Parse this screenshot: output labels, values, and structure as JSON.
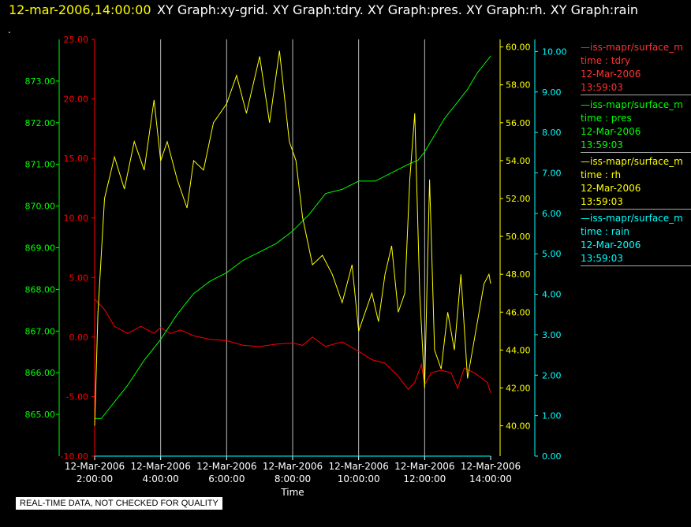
{
  "header": {
    "datetime": "12-mar-2006,14:00:00",
    "titles": "XY Graph:xy-grid.  XY Graph:tdry.  XY Graph:pres.  XY Graph:rh.  XY Graph:rain"
  },
  "marker_text": ".",
  "footer_note": "REAL-TIME DATA, NOT CHECKED FOR QUALITY",
  "colors": {
    "background": "#000000",
    "grid": "#bbbbbb",
    "tdry": "#ff0000",
    "pres": "#00ff00",
    "rh": "#ffff00",
    "rain": "#00ffff"
  },
  "legend": [
    {
      "line": "—iss-mapr/surface_m",
      "field": "time : tdry",
      "date": "12-Mar-2006",
      "time": "13:59:03",
      "color": "#ff3030"
    },
    {
      "line": "—iss-mapr/surface_m",
      "field": "time : pres",
      "date": "12-Mar-2006",
      "time": "13:59:03",
      "color": "#00ff00"
    },
    {
      "line": "—iss-mapr/surface_m",
      "field": "time : rh",
      "date": "12-Mar-2006",
      "time": "13:59:03",
      "color": "#ffff00"
    },
    {
      "line": "—iss-mapr/surface_m",
      "field": "time : rain",
      "date": "12-Mar-2006",
      "time": "13:59:03",
      "color": "#00ffff"
    }
  ],
  "chart_data": {
    "type": "line",
    "xlabel": "Time",
    "x_ticks": [
      {
        "date": "12-Mar-2006",
        "time": "2:00:00",
        "hour": 2
      },
      {
        "date": "12-Mar-2006",
        "time": "4:00:00",
        "hour": 4
      },
      {
        "date": "12-Mar-2006",
        "time": "6:00:00",
        "hour": 6
      },
      {
        "date": "12-Mar-2006",
        "time": "8:00:00",
        "hour": 8
      },
      {
        "date": "12-Mar-2006",
        "time": "10:00:00",
        "hour": 10
      },
      {
        "date": "12-Mar-2006",
        "time": "12:00:00",
        "hour": 12
      },
      {
        "date": "12-Mar-2006",
        "time": "14:00:00",
        "hour": 14
      }
    ],
    "xlim": [
      2,
      14
    ],
    "grid": true,
    "axes": {
      "tdry": {
        "ylim": [
          -10,
          25
        ],
        "ticks": [
          "-10.00",
          "-5.00",
          "0.00",
          "5.00",
          "10.00",
          "15.00",
          "20.00",
          "25.00"
        ],
        "color": "#ff0000"
      },
      "pres": {
        "ylim": [
          864,
          874
        ],
        "ticks": [
          "865.00",
          "866.00",
          "867.00",
          "868.00",
          "869.00",
          "870.00",
          "871.00",
          "872.00",
          "873.00"
        ],
        "color": "#00ff00"
      },
      "rh": {
        "ylim": [
          38.4,
          60.4
        ],
        "ticks": [
          "40.00",
          "42.00",
          "44.00",
          "46.00",
          "48.00",
          "50.00",
          "52.00",
          "54.00",
          "56.00",
          "58.00",
          "60.00"
        ],
        "color": "#ffff00"
      },
      "rain": {
        "ylim": [
          0,
          10.3
        ],
        "ticks": [
          "0.00",
          "1.00",
          "2.00",
          "3.00",
          "4.00",
          "5.00",
          "6.00",
          "7.00",
          "8.00",
          "9.00",
          "10.00"
        ],
        "color": "#00ffff"
      }
    },
    "series": [
      {
        "key": "tdry",
        "x": [
          2.0,
          2.3,
          2.6,
          3.0,
          3.4,
          3.8,
          4.0,
          4.3,
          4.6,
          5.0,
          5.5,
          6.0,
          6.5,
          7.0,
          7.5,
          8.0,
          8.3,
          8.6,
          9.0,
          9.5,
          10.0,
          10.4,
          10.8,
          11.2,
          11.5,
          11.7,
          11.9,
          12.0,
          12.2,
          12.5,
          12.8,
          13.0,
          13.2,
          13.5,
          13.7,
          13.9,
          14.0
        ],
        "values": [
          3.2,
          2.3,
          0.9,
          0.3,
          0.9,
          0.3,
          0.8,
          0.3,
          0.6,
          0.1,
          -0.2,
          -0.3,
          -0.7,
          -0.8,
          -0.6,
          -0.5,
          -0.7,
          0.0,
          -0.8,
          -0.4,
          -1.2,
          -1.9,
          -2.2,
          -3.3,
          -4.4,
          -3.8,
          -2.3,
          -4.0,
          -3.0,
          -2.8,
          -3.0,
          -4.3,
          -2.6,
          -3.0,
          -3.4,
          -3.8,
          -4.7
        ]
      },
      {
        "key": "pres",
        "x": [
          2.0,
          2.2,
          2.5,
          3.0,
          3.5,
          4.0,
          4.5,
          5.0,
          5.5,
          6.0,
          6.5,
          7.0,
          7.5,
          8.0,
          8.5,
          9.0,
          9.5,
          10.0,
          10.5,
          11.0,
          11.5,
          11.8,
          12.0,
          12.3,
          12.6,
          13.0,
          13.3,
          13.6,
          13.9,
          14.0
        ],
        "values": [
          864.9,
          864.9,
          865.2,
          865.7,
          866.3,
          866.8,
          867.4,
          867.9,
          868.2,
          868.4,
          868.7,
          868.9,
          869.1,
          869.4,
          869.8,
          870.3,
          870.4,
          870.6,
          870.6,
          870.8,
          871.0,
          871.1,
          871.3,
          871.7,
          872.1,
          872.5,
          872.8,
          873.2,
          873.5,
          873.6
        ]
      },
      {
        "key": "rh",
        "x": [
          2.0,
          2.1,
          2.3,
          2.6,
          2.9,
          3.2,
          3.5,
          3.8,
          4.0,
          4.2,
          4.5,
          4.8,
          5.0,
          5.3,
          5.6,
          6.0,
          6.3,
          6.6,
          7.0,
          7.3,
          7.6,
          7.9,
          8.1,
          8.3,
          8.6,
          8.9,
          9.2,
          9.5,
          9.8,
          10.0,
          10.2,
          10.4,
          10.6,
          10.8,
          11.0,
          11.2,
          11.4,
          11.55,
          11.7,
          11.85,
          12.0,
          12.15,
          12.3,
          12.5,
          12.7,
          12.9,
          13.1,
          13.3,
          13.5,
          13.8,
          13.95,
          14.0
        ],
        "values": [
          40.0,
          46.0,
          52.0,
          54.2,
          52.5,
          55.0,
          53.5,
          57.2,
          54.0,
          55.0,
          53.0,
          51.5,
          54.0,
          53.5,
          56.0,
          57.0,
          58.5,
          56.5,
          59.5,
          56.0,
          59.8,
          55.0,
          54.0,
          51.0,
          48.5,
          49.0,
          48.0,
          46.5,
          48.5,
          45.0,
          46.0,
          47.0,
          45.5,
          48.0,
          49.5,
          46.0,
          47.0,
          53.0,
          56.5,
          47.0,
          42.0,
          53.0,
          44.0,
          43.0,
          46.0,
          44.0,
          48.0,
          42.5,
          44.5,
          47.5,
          48.0,
          47.5
        ]
      },
      {
        "key": "rain",
        "x": [
          2.0,
          14.0
        ],
        "values": [
          0.0,
          0.0
        ]
      }
    ]
  }
}
